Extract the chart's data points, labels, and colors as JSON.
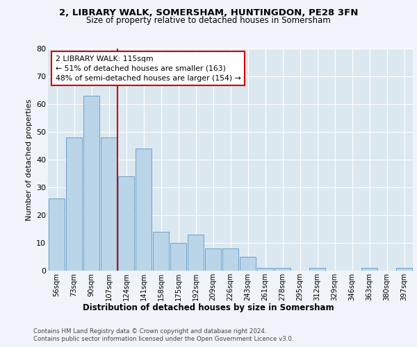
{
  "title_line1": "2, LIBRARY WALK, SOMERSHAM, HUNTINGDON, PE28 3FN",
  "title_line2": "Size of property relative to detached houses in Somersham",
  "xlabel": "Distribution of detached houses by size in Somersham",
  "ylabel": "Number of detached properties",
  "categories": [
    "56sqm",
    "73sqm",
    "90sqm",
    "107sqm",
    "124sqm",
    "141sqm",
    "158sqm",
    "175sqm",
    "192sqm",
    "209sqm",
    "226sqm",
    "243sqm",
    "261sqm",
    "278sqm",
    "295sqm",
    "312sqm",
    "329sqm",
    "346sqm",
    "363sqm",
    "380sqm",
    "397sqm"
  ],
  "values": [
    26,
    48,
    63,
    48,
    34,
    44,
    14,
    10,
    13,
    8,
    8,
    5,
    1,
    1,
    0,
    1,
    0,
    0,
    1,
    0,
    1
  ],
  "bar_color": "#bad4e8",
  "bar_edge_color": "#5b9ac8",
  "reference_line_x": 3,
  "reference_line_color": "#cc0000",
  "annotation_text": "2 LIBRARY WALK: 115sqm\n← 51% of detached houses are smaller (163)\n48% of semi-detached houses are larger (154) →",
  "annotation_box_color": "#ffffff",
  "annotation_box_edge": "#cc0000",
  "ylim": [
    0,
    80
  ],
  "yticks": [
    0,
    10,
    20,
    30,
    40,
    50,
    60,
    70,
    80
  ],
  "footer_line1": "Contains HM Land Registry data © Crown copyright and database right 2024.",
  "footer_line2": "Contains public sector information licensed under the Open Government Licence v3.0.",
  "fig_bg_color": "#f0f4fa",
  "plot_bg_color": "#dce8f0"
}
